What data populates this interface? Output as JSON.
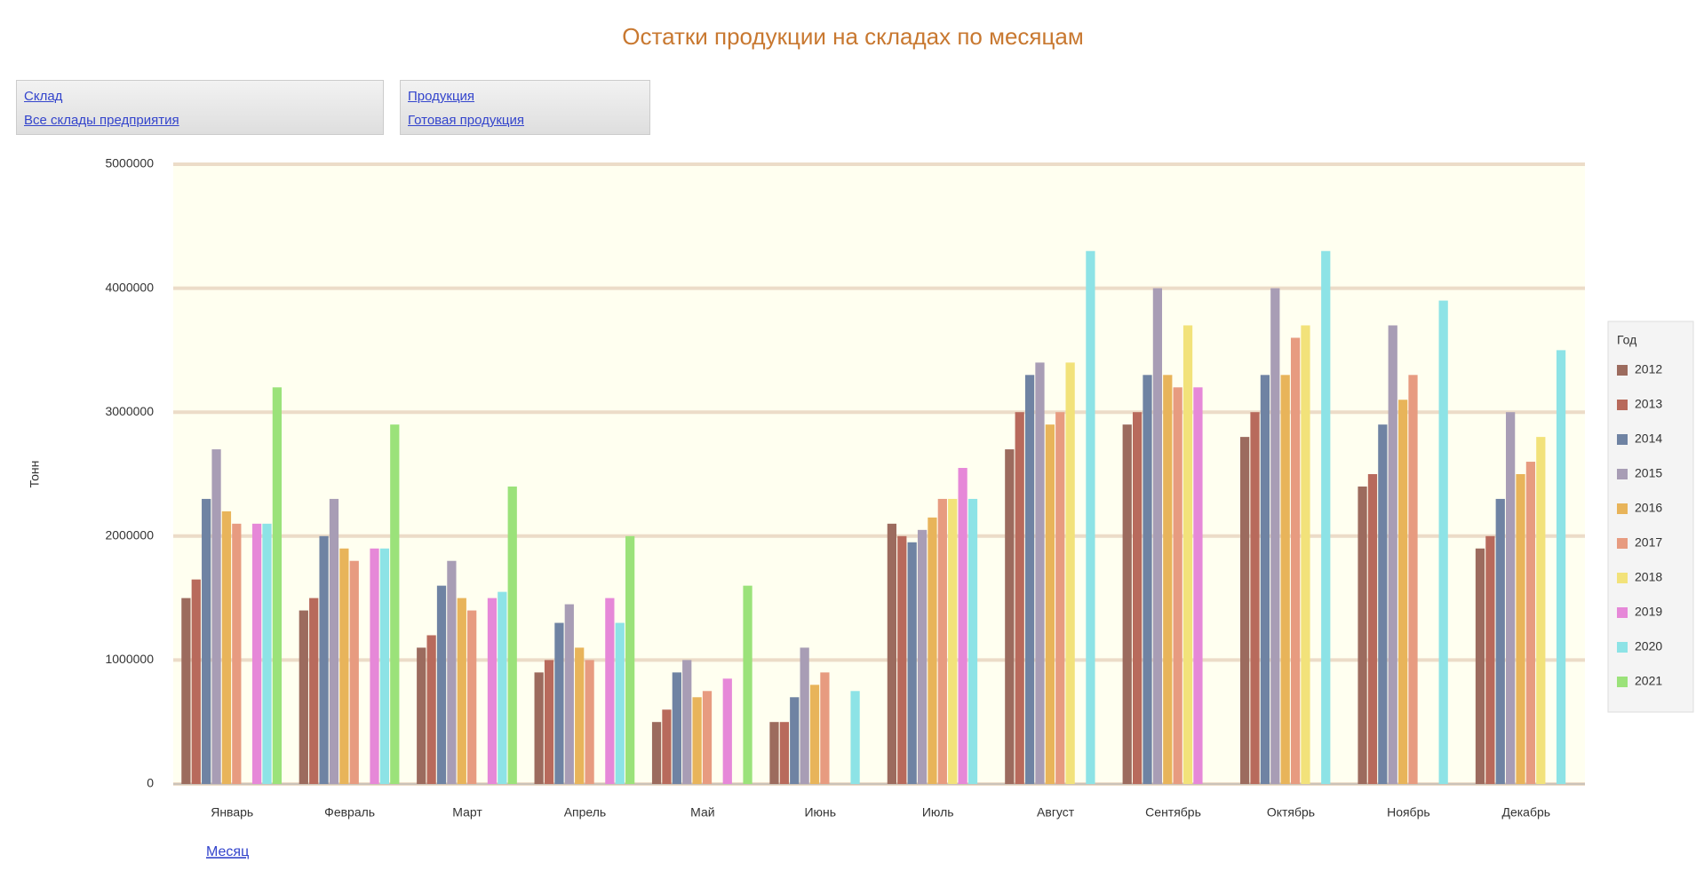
{
  "chart_data": {
    "type": "bar",
    "title": "Остатки продукции на складах по месяцам",
    "filters": [
      {
        "label": "Склад",
        "value": "Все склады предприятия"
      },
      {
        "label": "Продукция",
        "value": "Готовая продукция"
      }
    ],
    "ylabel": "Тонн",
    "xlabel": "Месяц",
    "legend_title": "Год",
    "legend": "right",
    "grid": true,
    "categories": [
      "Январь",
      "Февраль",
      "Март",
      "Апрель",
      "Май",
      "Июнь",
      "Июль",
      "Август",
      "Сентябрь",
      "Октябрь",
      "Ноябрь",
      "Декабрь"
    ],
    "ylim": [
      0,
      5000000
    ],
    "yticks": [
      0,
      1000000,
      2000000,
      3000000,
      4000000,
      5000000
    ],
    "series": [
      {
        "name": "2012",
        "color": "#9c6b5e",
        "values": [
          1500000,
          1400000,
          1100000,
          900000,
          500000,
          500000,
          2100000,
          2700000,
          2900000,
          2800000,
          2400000,
          1900000
        ]
      },
      {
        "name": "2013",
        "color": "#b86a5c",
        "values": [
          1650000,
          1500000,
          1200000,
          1000000,
          600000,
          500000,
          2000000,
          3000000,
          3000000,
          3000000,
          2500000,
          2000000
        ]
      },
      {
        "name": "2014",
        "color": "#6f83a3",
        "values": [
          2300000,
          2000000,
          1600000,
          1300000,
          900000,
          700000,
          1950000,
          3300000,
          3300000,
          3300000,
          2900000,
          2300000
        ]
      },
      {
        "name": "2015",
        "color": "#a89db5",
        "values": [
          2700000,
          2300000,
          1800000,
          1450000,
          1000000,
          1100000,
          2050000,
          3400000,
          4000000,
          4000000,
          3700000,
          3000000
        ]
      },
      {
        "name": "2016",
        "color": "#e8b45a",
        "values": [
          2200000,
          1900000,
          1500000,
          1100000,
          700000,
          800000,
          2150000,
          2900000,
          3300000,
          3300000,
          3100000,
          2500000
        ]
      },
      {
        "name": "2017",
        "color": "#e79b80",
        "values": [
          2100000,
          1800000,
          1400000,
          1000000,
          750000,
          900000,
          2300000,
          3000000,
          3200000,
          3600000,
          3300000,
          2600000
        ]
      },
      {
        "name": "2018",
        "color": "#f2e27a",
        "values": [
          null,
          null,
          null,
          null,
          null,
          null,
          2300000,
          3400000,
          3700000,
          3700000,
          null,
          2800000
        ]
      },
      {
        "name": "2019",
        "color": "#e688d8",
        "values": [
          2100000,
          1900000,
          1500000,
          1500000,
          850000,
          null,
          2550000,
          null,
          3200000,
          null,
          null,
          null
        ]
      },
      {
        "name": "2020",
        "color": "#8de3e6",
        "values": [
          2100000,
          1900000,
          1550000,
          1300000,
          null,
          750000,
          2300000,
          4300000,
          null,
          4300000,
          3900000,
          3500000
        ]
      },
      {
        "name": "2021",
        "color": "#9be27a",
        "values": [
          3200000,
          2900000,
          2400000,
          2000000,
          1600000,
          null,
          null,
          null,
          null,
          null,
          null,
          null
        ]
      }
    ]
  }
}
